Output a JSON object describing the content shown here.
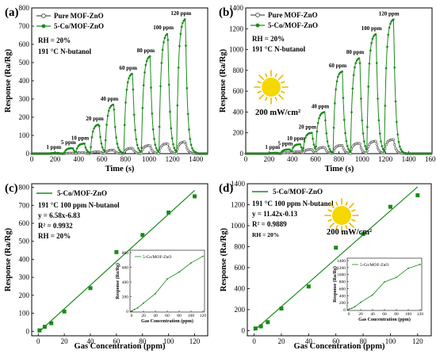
{
  "figure": {
    "colors": {
      "green": "#1a8a1a",
      "gray": "#555555",
      "sun": "#f5d800",
      "sun_ray": "#f0b400"
    }
  },
  "panels": [
    {
      "label": "(a)",
      "legend": [
        "Pure MOF-ZnO",
        "5-Co/MOF-ZnO"
      ],
      "notes": [
        "RH = 20%",
        "191 °C N-butanol"
      ],
      "conc_labels": [
        "1 ppm",
        "5 ppm",
        "10 ppm",
        "20 ppm",
        "40 ppm",
        "60 ppm",
        "80 ppm",
        "100 ppm",
        "120 ppm"
      ]
    },
    {
      "label": "(b)",
      "legend": [
        "Pure MOF-ZnO",
        "5-Co/MOF-ZnO"
      ],
      "notes": [
        "RH = 20%",
        "191 °C N-butanol"
      ],
      "light": "200 mW/cm²",
      "conc_labels": [
        "1 ppm",
        "5 ppm",
        "10 ppm",
        "20 ppm",
        "40 ppm",
        "60 ppm",
        "80 ppm",
        "100 ppm",
        "120 ppm"
      ]
    },
    {
      "label": "(c)",
      "legend": [
        "5-Co/MOF-ZnO"
      ],
      "notes": [
        "191 °C 100 ppm N-butanol",
        "y = 6.58x-6.83",
        "R² = 0.9932",
        "RH = 20%"
      ],
      "inset": {
        "legend": "5-Co/MOF-ZnO",
        "xlabel": "Gas Concentration (ppm)",
        "ylabel": "Response (Ra/Rg)"
      }
    },
    {
      "label": "(d)",
      "legend": [
        "5-Co/MOF-ZnO"
      ],
      "notes": [
        "191 °C 100 ppm N-butanol",
        "y = 11.42x-0.13",
        "R² = 0.9889",
        "RH = 20%"
      ],
      "light": "200 mW/cm²",
      "inset": {
        "legend": "5-Co/MOF-ZnO",
        "xlabel": "Gas Concentration (ppm)",
        "ylabel": "Response (Ra/Rg)"
      }
    }
  ],
  "chart_data": [
    {
      "type": "line",
      "xlabel": "Time (s)",
      "ylabel": "Response (Ra/Rg)",
      "xlim": [
        0,
        1500
      ],
      "ylim": [
        0,
        800
      ],
      "xticks": [
        0,
        200,
        400,
        600,
        800,
        1000,
        1200,
        1400
      ],
      "yticks": [
        0,
        100,
        200,
        300,
        400,
        500,
        600,
        700,
        800
      ],
      "pulse_start": [
        150,
        275,
        375,
        500,
        625,
        785,
        935,
        1085,
        1235
      ],
      "pulse_width": 75,
      "series": [
        {
          "name": "Pure MOF-ZnO",
          "color": "#555555",
          "peaks": [
            1,
            3,
            5,
            10,
            20,
            30,
            45,
            55,
            65
          ]
        },
        {
          "name": "5-Co/MOF-ZnO",
          "color": "#1a8a1a",
          "peaks": [
            4,
            30,
            55,
            160,
            270,
            440,
            535,
            660,
            740
          ]
        }
      ]
    },
    {
      "type": "line",
      "xlabel": "Time (s)",
      "ylabel": "Response (Ra/Rg)",
      "xlim": [
        0,
        1600
      ],
      "ylim": [
        0,
        1400
      ],
      "xticks": [
        0,
        200,
        400,
        600,
        800,
        1000,
        1200,
        1400,
        1600
      ],
      "yticks": [
        0,
        200,
        400,
        600,
        800,
        1000,
        1200,
        1400
      ],
      "pulse_start": [
        190,
        300,
        390,
        490,
        600,
        750,
        900,
        1040,
        1190
      ],
      "pulse_width": 80,
      "series": [
        {
          "name": "Pure MOF-ZnO",
          "color": "#555555",
          "peaks": [
            2,
            10,
            20,
            40,
            60,
            80,
            100,
            120,
            135
          ]
        },
        {
          "name": "5-Co/MOF-ZnO",
          "color": "#1a8a1a",
          "peaks": [
            8,
            40,
            90,
            200,
            400,
            790,
            920,
            1150,
            1290
          ]
        }
      ]
    },
    {
      "type": "scatter",
      "xlabel": "Gas Concentration (ppm)",
      "ylabel": "Response (Ra/Rg)",
      "xlim": [
        -5,
        130
      ],
      "ylim": [
        -25,
        820
      ],
      "xticks": [
        0,
        20,
        40,
        60,
        80,
        100,
        120
      ],
      "yticks": [
        0,
        100,
        200,
        300,
        400,
        500,
        600,
        700,
        800
      ],
      "series": [
        {
          "name": "5-Co/MOF-ZnO",
          "color": "#1a8a1a",
          "x": [
            1,
            5,
            10,
            20,
            40,
            60,
            80,
            100,
            120
          ],
          "y": [
            5,
            25,
            45,
            110,
            240,
            440,
            535,
            660,
            750
          ]
        }
      ],
      "fit": {
        "slope": 6.58,
        "intercept": -6.83,
        "x_range": [
          0,
          120
        ]
      },
      "inset": {
        "xlim": [
          0,
          120
        ],
        "ylim": [
          0,
          800
        ],
        "xticks": [
          0,
          20,
          40,
          60,
          80,
          100,
          120
        ],
        "yticks": [
          0,
          200,
          400,
          600,
          800
        ]
      }
    },
    {
      "type": "scatter",
      "xlabel": "Gas Concentration (ppm)",
      "ylabel": "Response (Ra/Rg)",
      "xlim": [
        -5,
        130
      ],
      "ylim": [
        -50,
        1400
      ],
      "xticks": [
        0,
        20,
        40,
        60,
        80,
        100,
        120
      ],
      "yticks": [
        0,
        200,
        400,
        600,
        800,
        1000,
        1200,
        1400
      ],
      "series": [
        {
          "name": "5-Co/MOF-ZnO",
          "color": "#1a8a1a",
          "x": [
            1,
            5,
            10,
            20,
            40,
            60,
            80,
            100,
            120
          ],
          "y": [
            20,
            40,
            80,
            210,
            420,
            790,
            920,
            1180,
            1290
          ]
        }
      ],
      "fit": {
        "slope": 11.42,
        "intercept": -0.13,
        "x_range": [
          0,
          120
        ]
      },
      "inset": {
        "xlim": [
          0,
          120
        ],
        "ylim": [
          0,
          1400
        ],
        "xticks": [
          0,
          20,
          40,
          60,
          80,
          100,
          120
        ],
        "yticks": [
          0,
          200,
          400,
          600,
          800,
          1000,
          1200,
          1400
        ]
      }
    }
  ]
}
